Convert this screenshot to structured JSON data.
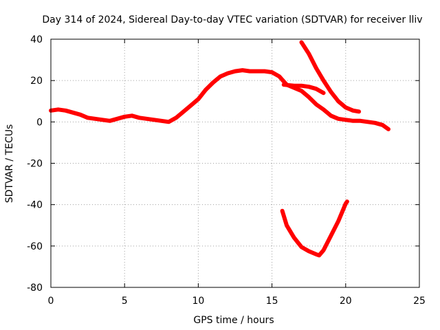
{
  "chart_data": {
    "type": "line",
    "title": "Day 314 of 2024, Sidereal Day-to-day VTEC variation (SDTVAR) for receiver lliv",
    "xlabel": "GPS time / hours",
    "ylabel": "SDTVAR / TECUs",
    "xlim": [
      0,
      25
    ],
    "ylim": [
      -80,
      40
    ],
    "xticks": [
      0,
      5,
      10,
      15,
      20,
      25
    ],
    "yticks": [
      -80,
      -60,
      -40,
      -20,
      0,
      20,
      40
    ],
    "xtick_labels": [
      "0",
      "5",
      "10",
      "15",
      "20",
      "25"
    ],
    "ytick_labels": [
      "-80",
      "-60",
      "-40",
      "-20",
      "0",
      "20",
      "40"
    ],
    "grid": true,
    "color": "#ff0000",
    "series": [
      {
        "name": "main-arc",
        "x": [
          0,
          0.5,
          1,
          1.5,
          2,
          2.5,
          3,
          3.5,
          4,
          4.5,
          5,
          5.5,
          6,
          6.5,
          7,
          7.5,
          8,
          8.5,
          9,
          9.5,
          10,
          10.5,
          11,
          11.5,
          12,
          12.5,
          13,
          13.5,
          14,
          14.5,
          15,
          15.5,
          16,
          16.5,
          17,
          17.5,
          18,
          18.5,
          19,
          19.5,
          20,
          20.5,
          21,
          21.5,
          22,
          22.5,
          22.9
        ],
        "y": [
          5.5,
          6,
          5.5,
          4.5,
          3.5,
          2,
          1.5,
          1,
          0.5,
          1.5,
          2.5,
          3,
          2,
          1.5,
          1,
          0.5,
          0,
          2,
          5,
          8,
          11,
          15.5,
          19,
          22,
          23.5,
          24.5,
          25,
          24.5,
          24.5,
          24.5,
          24,
          22,
          18,
          16.5,
          15,
          12,
          8.5,
          6,
          3,
          1.5,
          1,
          0.5,
          0.5,
          0,
          -0.5,
          -1.5,
          -3.5
        ]
      },
      {
        "name": "upper-branch",
        "x": [
          15.8,
          16.5,
          17,
          17.5,
          18,
          18.5
        ],
        "y": [
          18,
          17.5,
          17.5,
          17,
          16,
          14
        ]
      },
      {
        "name": "descending-arc",
        "x": [
          17,
          17.5,
          18,
          18.5,
          19,
          19.5,
          20,
          20.5,
          20.9
        ],
        "y": [
          38.5,
          33,
          26,
          20,
          14.5,
          10,
          7,
          5.5,
          5
        ]
      },
      {
        "name": "lower-arc",
        "x": [
          15.7,
          16,
          16.5,
          17,
          17.5,
          18,
          18.2,
          18.5,
          19,
          19.5,
          20,
          20.1
        ],
        "y": [
          -43,
          -50,
          -56,
          -60.5,
          -62.5,
          -64,
          -64.5,
          -62,
          -55,
          -48,
          -39.5,
          -38.5
        ]
      }
    ]
  }
}
